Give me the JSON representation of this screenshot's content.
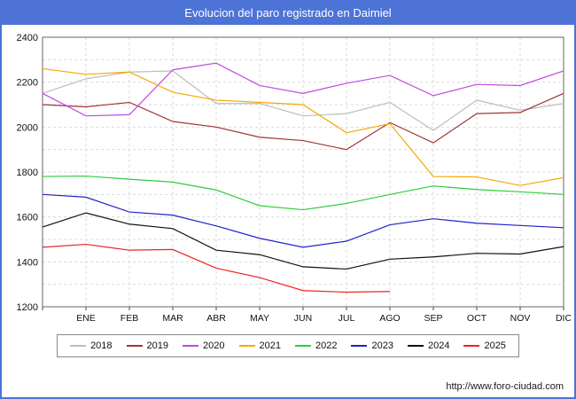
{
  "window": {
    "title": "Evolucion del paro registrado en Daimiel"
  },
  "footer": {
    "url": "http://www.foro-ciudad.com"
  },
  "colors": {
    "frame_blue": "#4e73d6",
    "grid": "#d9d9d9",
    "axis_border": "#666666"
  },
  "chart_data": {
    "type": "line",
    "title": "Evolucion del paro registrado en Daimiel",
    "xlabel": "",
    "ylabel": "",
    "ylim": [
      1200,
      2400
    ],
    "y_ticks": [
      1200,
      1400,
      1600,
      1800,
      2000,
      2200,
      2400
    ],
    "grid": true,
    "legend_position": "bottom",
    "x_tick_labels": [
      "ENE",
      "FEB",
      "MAR",
      "ABR",
      "MAY",
      "JUN",
      "JUL",
      "AGO",
      "SEP",
      "OCT",
      "NOV",
      "DIC"
    ],
    "note": "Each series has 13 points: the first point sits on the y-axis (start of year), followed by one value per month ENE-DIC. 2025 series ends in AGO.",
    "series": [
      {
        "name": "2018",
        "color": "#bdbdbd",
        "values": [
          2150,
          2215,
          2245,
          2250,
          2105,
          2105,
          2050,
          2060,
          2110,
          1985,
          2120,
          2075,
          2105
        ]
      },
      {
        "name": "2019",
        "color": "#a03535",
        "values": [
          2100,
          2090,
          2110,
          2025,
          2000,
          1955,
          1940,
          1900,
          2020,
          1930,
          2060,
          2065,
          2150
        ]
      },
      {
        "name": "2020",
        "color": "#c04ae0",
        "values": [
          2150,
          2050,
          2055,
          2255,
          2285,
          2185,
          2150,
          2195,
          2230,
          2140,
          2190,
          2185,
          2250
        ]
      },
      {
        "name": "2021",
        "color": "#f5a800",
        "values": [
          2260,
          2235,
          2245,
          2155,
          2120,
          2110,
          2100,
          1975,
          2015,
          1780,
          1778,
          1740,
          1775
        ]
      },
      {
        "name": "2022",
        "color": "#2ecc40",
        "values": [
          1780,
          1782,
          1768,
          1755,
          1720,
          1650,
          1632,
          1660,
          1700,
          1738,
          1722,
          1712,
          1700
        ]
      },
      {
        "name": "2023",
        "color": "#2222cc",
        "values": [
          1700,
          1688,
          1622,
          1608,
          1560,
          1505,
          1465,
          1492,
          1565,
          1592,
          1572,
          1562,
          1552
        ]
      },
      {
        "name": "2024",
        "color": "#111111",
        "values": [
          1555,
          1618,
          1568,
          1548,
          1452,
          1432,
          1378,
          1368,
          1412,
          1422,
          1438,
          1435,
          1468
        ]
      },
      {
        "name": "2025",
        "color": "#ee2222",
        "values": [
          1465,
          1478,
          1452,
          1455,
          1372,
          1330,
          1272,
          1265,
          1268,
          null,
          null,
          null,
          null
        ]
      }
    ]
  }
}
